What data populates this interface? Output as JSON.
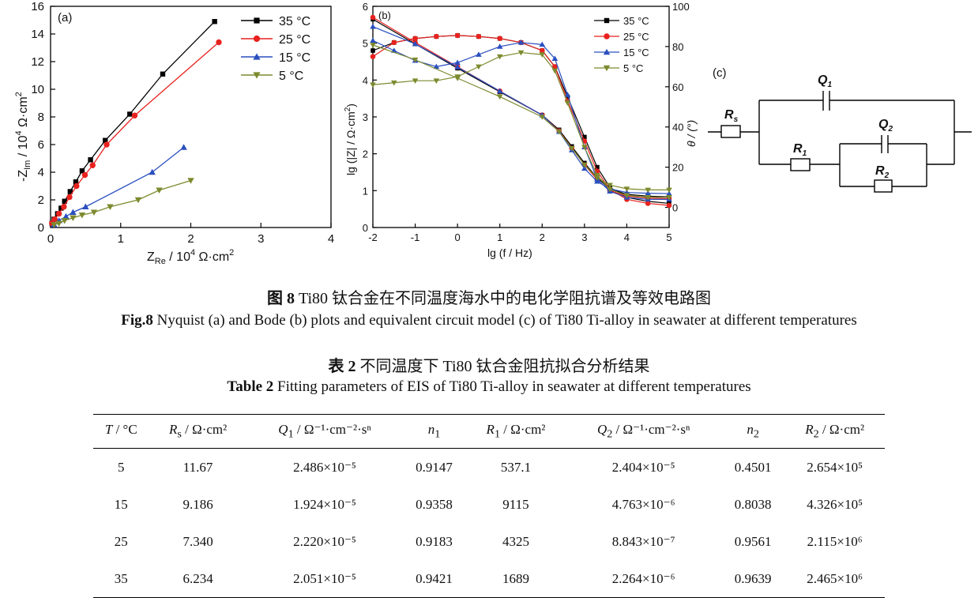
{
  "panel_a": {
    "label": "(a)",
    "xlabel_main": "Z",
    "xlabel_sub": "Re",
    "xlabel_rest": " / 10",
    "xlabel_sup": "4",
    "xlabel_unit": " Ω·cm",
    "xlabel_unit_sup": "2",
    "ylabel_prefix": "-Z",
    "ylabel_sub": "Im",
    "ylabel_rest": " / 10",
    "ylabel_sup": "4",
    "ylabel_unit": " Ω·cm",
    "ylabel_unit_sup": "2"
  },
  "panel_b": {
    "label": "(b)",
    "xlabel": "lg (f / Hz)",
    "ylabel_left": "lg (|Z| / Ω·cm",
    "ylabel_left_sup": "2",
    "ylabel_left_end": ")",
    "ylabel_right": "θ / (°)"
  },
  "panel_c": {
    "label": "(c)",
    "Rs": "R",
    "Rs_sub": "s",
    "Q1": "Q",
    "Q1_sub": "1",
    "Q2": "Q",
    "Q2_sub": "2",
    "R1": "R",
    "R1_sub": "1",
    "R2": "R",
    "R2_sub": "2"
  },
  "colors": {
    "35": "#000000",
    "25": "#e8221e",
    "15": "#2a4fbf",
    "5": "#7d8a2e"
  },
  "chart_data": [
    {
      "type": "scatter",
      "panel": "a",
      "xlim": [
        0,
        4
      ],
      "ylim": [
        0,
        16
      ],
      "xticks": [
        "0",
        "1",
        "2",
        "3",
        "4"
      ],
      "yticks": [
        "0",
        "2",
        "4",
        "6",
        "8",
        "10",
        "12",
        "14",
        "16"
      ],
      "legend": "top-right",
      "series": [
        {
          "name": "35 °C",
          "marker": "square",
          "color": "#000000",
          "x": [
            0.02,
            0.05,
            0.1,
            0.15,
            0.2,
            0.28,
            0.36,
            0.45,
            0.57,
            0.78,
            1.13,
            1.6,
            2.34
          ],
          "y": [
            0.3,
            0.6,
            1.0,
            1.4,
            1.9,
            2.6,
            3.3,
            4.1,
            4.9,
            6.3,
            8.2,
            11.1,
            14.9
          ]
        },
        {
          "name": "25 °C",
          "marker": "circle",
          "color": "#e8221e",
          "x": [
            0.02,
            0.06,
            0.12,
            0.19,
            0.27,
            0.37,
            0.49,
            0.6,
            0.8,
            1.2,
            2.4
          ],
          "y": [
            0.3,
            0.6,
            1.0,
            1.5,
            2.2,
            3.0,
            3.8,
            4.5,
            6.0,
            8.1,
            13.4
          ]
        },
        {
          "name": "15 °C",
          "marker": "triangle",
          "color": "#2a4fbf",
          "x": [
            0.05,
            0.12,
            0.22,
            0.32,
            0.5,
            1.45,
            1.9
          ],
          "y": [
            0.2,
            0.5,
            0.8,
            1.1,
            1.5,
            4.0,
            5.8
          ]
        },
        {
          "name": "5 °C",
          "marker": "triangle-down",
          "color": "#7d8a2e",
          "x": [
            0.05,
            0.12,
            0.2,
            0.32,
            0.45,
            0.62,
            0.85,
            1.25,
            1.55,
            2.0
          ],
          "y": [
            0.2,
            0.3,
            0.5,
            0.7,
            0.9,
            1.1,
            1.5,
            2.0,
            2.7,
            3.4
          ]
        }
      ]
    },
    {
      "type": "line",
      "panel": "b",
      "xlim": [
        -2,
        5
      ],
      "ylim": [
        0,
        6
      ],
      "y2lim": [
        -10,
        100
      ],
      "xticks": [
        "-2",
        "-1",
        "0",
        "1",
        "2",
        "3",
        "4",
        "5"
      ],
      "yticks": [
        "0",
        "1",
        "2",
        "3",
        "4",
        "5",
        "6"
      ],
      "y2ticks": [
        "0",
        "20",
        "40",
        "60",
        "80",
        "100"
      ],
      "legend": "top-right",
      "series": [
        {
          "name": "35 °C",
          "axis": "left",
          "color": "#000000",
          "marker": "square",
          "x": [
            -2,
            -1,
            0,
            1,
            2,
            2.4,
            2.7,
            3,
            3.3,
            3.6,
            4,
            4.5,
            5
          ],
          "y": [
            5.65,
            4.98,
            4.32,
            3.68,
            3.05,
            2.65,
            2.2,
            1.75,
            1.35,
            1.05,
            0.9,
            0.85,
            0.83
          ]
        },
        {
          "axis": "right",
          "color": "#000000",
          "marker": "square",
          "x": [
            -2,
            -1.5,
            -1,
            -0.5,
            0,
            0.5,
            1,
            1.5,
            2,
            2.3,
            2.6,
            3,
            3.3,
            3.6,
            4,
            4.5,
            5
          ],
          "y": [
            78,
            82,
            84,
            85,
            85.5,
            85,
            84,
            82,
            78,
            70,
            55,
            35,
            20,
            10,
            5,
            3,
            2
          ]
        },
        {
          "name": "25 °C",
          "axis": "left",
          "color": "#e8221e",
          "marker": "circle",
          "x": [
            -2,
            -1,
            0,
            1,
            2,
            2.4,
            2.7,
            3,
            3.3,
            3.6,
            4,
            4.5,
            5
          ],
          "y": [
            5.7,
            5.02,
            4.36,
            3.7,
            3.05,
            2.62,
            2.15,
            1.7,
            1.3,
            1.0,
            0.85,
            0.8,
            0.78
          ]
        },
        {
          "axis": "right",
          "color": "#e8221e",
          "marker": "circle",
          "x": [
            -2,
            -1.5,
            -1,
            -0.5,
            0,
            0.5,
            1,
            1.5,
            2,
            2.3,
            2.6,
            3,
            3.3,
            3.6,
            4,
            4.5,
            5
          ],
          "y": [
            75,
            82,
            84,
            85,
            85.5,
            85,
            84,
            82,
            78,
            70,
            53,
            33,
            18,
            9,
            4,
            2,
            1
          ]
        },
        {
          "name": "15 °C",
          "axis": "left",
          "color": "#2a4fbf",
          "marker": "triangle",
          "x": [
            -2,
            -1,
            0,
            1,
            2,
            2.4,
            2.7,
            3,
            3.3,
            3.6,
            4,
            4.5,
            5
          ],
          "y": [
            5.45,
            4.98,
            4.35,
            3.7,
            3.05,
            2.6,
            2.1,
            1.6,
            1.25,
            1.05,
            0.95,
            0.93,
            0.92
          ]
        },
        {
          "axis": "right",
          "color": "#2a4fbf",
          "marker": "triangle",
          "x": [
            -2,
            -1.5,
            -1,
            -0.5,
            0,
            0.5,
            1,
            1.5,
            2,
            2.3,
            2.6,
            3,
            3.3,
            3.6,
            4,
            4.5,
            5
          ],
          "y": [
            83,
            78,
            73,
            70,
            72,
            76,
            80,
            82,
            81,
            74,
            56,
            30,
            14,
            8,
            5,
            4,
            4
          ]
        },
        {
          "name": "5 °C",
          "axis": "left",
          "color": "#7d8a2e",
          "marker": "triangle-down",
          "x": [
            -2,
            -1,
            0,
            1,
            2,
            2.4,
            2.7,
            3,
            3.3,
            3.6,
            4,
            4.5,
            5
          ],
          "y": [
            4.95,
            4.55,
            4.05,
            3.55,
            3.0,
            2.6,
            2.15,
            1.7,
            1.35,
            1.15,
            1.05,
            1.02,
            1.02
          ]
        },
        {
          "axis": "right",
          "color": "#7d8a2e",
          "marker": "triangle-down",
          "x": [
            -2,
            -1.5,
            -1,
            -0.5,
            0,
            0.5,
            1,
            1.5,
            2,
            2.3,
            2.6,
            3,
            3.3,
            3.6,
            4,
            4.5,
            5
          ],
          "y": [
            61,
            62,
            63,
            63,
            65,
            70,
            75,
            77,
            76,
            68,
            52,
            30,
            16,
            9,
            6,
            5,
            5
          ]
        }
      ]
    }
  ],
  "captions": {
    "fig_cn_bold": "图 8",
    "fig_cn": " Ti80 钛合金在不同温度海水中的电化学阻抗谱及等效电路图",
    "fig_en_bold": "Fig.8",
    "fig_en": " Nyquist (a) and Bode (b) plots and equivalent circuit model (c) of Ti80 Ti-alloy in seawater at different temperatures",
    "table_cn_bold": "表 2",
    "table_cn": " 不同温度下 Ti80 钛合金阻抗拟合分析结果",
    "table_en_bold": "Table 2",
    "table_en": " Fitting parameters of EIS of Ti80 Ti-alloy in seawater at different temperatures"
  },
  "table": {
    "headers": [
      {
        "main": "T",
        "sub": "",
        "unit": " / °C"
      },
      {
        "main": "R",
        "sub": "s",
        "unit": " / Ω·cm²"
      },
      {
        "main": "Q",
        "sub": "1",
        "unit": " / Ω⁻¹·cm⁻²·sⁿ"
      },
      {
        "main": "n",
        "sub": "1",
        "unit": ""
      },
      {
        "main": "R",
        "sub": "1",
        "unit": " / Ω·cm²"
      },
      {
        "main": "Q",
        "sub": "2",
        "unit": " / Ω⁻¹·cm⁻²·sⁿ"
      },
      {
        "main": "n",
        "sub": "2",
        "unit": ""
      },
      {
        "main": "R",
        "sub": "2",
        "unit": " / Ω·cm²"
      }
    ],
    "rows": [
      [
        "5",
        "11.67",
        "2.486×10⁻⁵",
        "0.9147",
        "537.1",
        "2.404×10⁻⁵",
        "0.4501",
        "2.654×10⁵"
      ],
      [
        "15",
        "9.186",
        "1.924×10⁻⁵",
        "0.9358",
        "9115",
        "4.763×10⁻⁶",
        "0.8038",
        "4.326×10⁵"
      ],
      [
        "25",
        "7.340",
        "2.220×10⁻⁵",
        "0.9183",
        "4325",
        "8.843×10⁻⁷",
        "0.9561",
        "2.115×10⁶"
      ],
      [
        "35",
        "6.234",
        "2.051×10⁻⁵",
        "0.9421",
        "1689",
        "2.264×10⁻⁶",
        "0.9639",
        "2.465×10⁶"
      ]
    ]
  }
}
